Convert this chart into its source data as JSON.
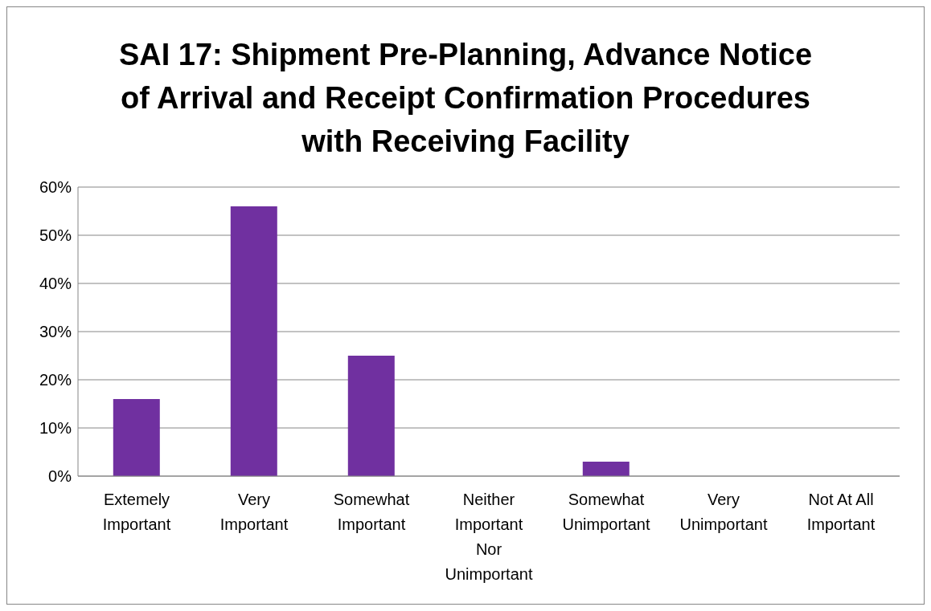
{
  "chart_data": {
    "type": "bar",
    "title": "SAI 17: Shipment Pre-Planning, Advance Notice of Arrival and Receipt Confirmation Procedures with Receiving Facility",
    "categories": [
      "Extemely Important",
      "Very Important",
      "Somewhat Important",
      "Neither Important Nor Unimportant",
      "Somewhat Unimportant",
      "Very Unimportant",
      "Not At All Important"
    ],
    "values": [
      16,
      56,
      25,
      0,
      3,
      0,
      0
    ],
    "color": "#7030a0",
    "ylim": [
      0,
      60
    ],
    "yticks": [
      {
        "value": 0,
        "label": "0%"
      },
      {
        "value": 10,
        "label": "10%"
      },
      {
        "value": 20,
        "label": "20%"
      },
      {
        "value": 30,
        "label": "30%"
      },
      {
        "value": 40,
        "label": "40%"
      },
      {
        "value": 50,
        "label": "50%"
      },
      {
        "value": 60,
        "label": "60%"
      }
    ],
    "grid": "y",
    "legend": false
  }
}
